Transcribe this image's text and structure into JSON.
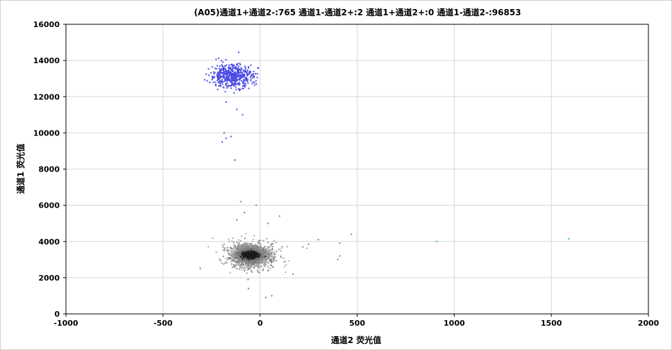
{
  "chart_data": {
    "type": "scatter",
    "title": "(A05)通道1+通道2-:765   通道1-通道2+:2   通道1+通道2+:0   通道1-通道2-:96853",
    "xlabel": "通道2 荧光值",
    "ylabel": "通道1 荧光值",
    "xlim": [
      -1000,
      2000
    ],
    "ylim": [
      0,
      16000
    ],
    "xticks": [
      "-1000",
      "-500",
      "0",
      "500",
      "1000",
      "1500",
      "2000"
    ],
    "xtick_values": [
      -1000,
      -500,
      0,
      500,
      1000,
      1500,
      2000
    ],
    "yticks": [
      "0",
      "2000",
      "4000",
      "6000",
      "8000",
      "10000",
      "12000",
      "14000",
      "16000"
    ],
    "ytick_values": [
      0,
      2000,
      4000,
      6000,
      8000,
      10000,
      12000,
      14000,
      16000
    ],
    "grid": true,
    "series": [
      {
        "name": "通道1+通道2-",
        "color": "#4b4be6",
        "cluster": {
          "x_center": -145,
          "y_center": 13150,
          "x_spread": 55,
          "y_spread": 320,
          "count": 765
        },
        "outliers": [
          [
            -185,
            10000
          ],
          [
            -175,
            9700
          ],
          [
            -195,
            9500
          ],
          [
            -150,
            9800
          ],
          [
            -130,
            8500
          ],
          [
            -120,
            11300
          ],
          [
            -90,
            11000
          ],
          [
            -175,
            11700
          ],
          [
            -110,
            14450
          ]
        ]
      },
      {
        "name": "通道1-通道2+",
        "color": "#33cc33",
        "points": [
          [
            910,
            4000
          ],
          [
            1590,
            4150
          ]
        ]
      },
      {
        "name": "通道1-通道2-",
        "color": "#808080",
        "cluster": {
          "x_center": -50,
          "y_center": 3250,
          "x_spread": 40,
          "y_spread": 240,
          "count": 96853
        },
        "outliers": [
          [
            -100,
            6200
          ],
          [
            -20,
            6000
          ],
          [
            -120,
            5200
          ],
          [
            40,
            5000
          ],
          [
            300,
            4100
          ],
          [
            250,
            3850
          ],
          [
            410,
            3900
          ],
          [
            410,
            3200
          ],
          [
            400,
            3000
          ],
          [
            470,
            4400
          ],
          [
            170,
            2200
          ],
          [
            -60,
            1400
          ],
          [
            30,
            900
          ],
          [
            60,
            1000
          ],
          [
            -80,
            5600
          ],
          [
            100,
            5400
          ],
          [
            220,
            3700
          ]
        ]
      }
    ]
  }
}
